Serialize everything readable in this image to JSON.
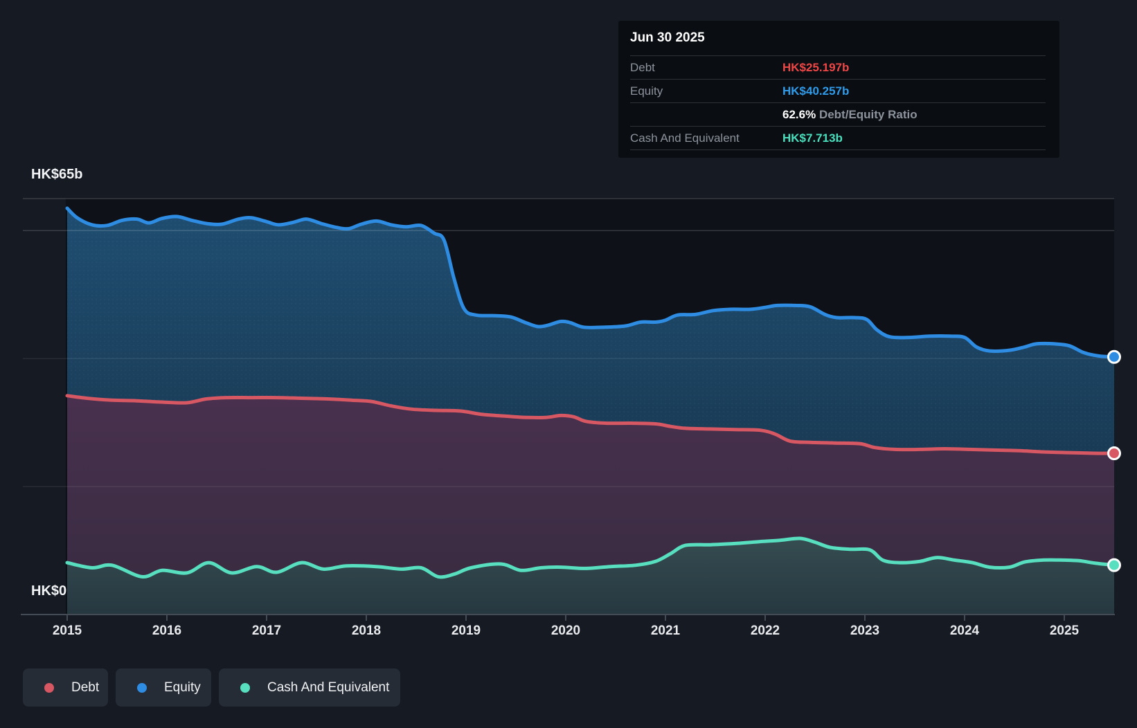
{
  "tooltip": {
    "date": "Jun 30 2025",
    "debt_label": "Debt",
    "debt_value": "HK$25.197b",
    "equity_label": "Equity",
    "equity_value": "HK$40.257b",
    "ratio_percent": "62.6%",
    "ratio_label": "Debt/Equity Ratio",
    "cash_label": "Cash And Equivalent",
    "cash_value": "HK$7.713b"
  },
  "legend": {
    "items": [
      {
        "label": "Debt",
        "series": "Debt"
      },
      {
        "label": "Equity",
        "series": "Equity"
      },
      {
        "label": "Cash And Equivalent",
        "series": "Cash And Equivalent"
      }
    ]
  },
  "chart_data": {
    "type": "area",
    "y_axis_top_label": "HK$65b",
    "y_axis_bottom_label": "HK$0",
    "ylim": [
      0,
      65
    ],
    "x_range": [
      2015,
      2025.5
    ],
    "x_tick_labels": [
      "2015",
      "2016",
      "2017",
      "2018",
      "2019",
      "2020",
      "2021",
      "2022",
      "2023",
      "2024",
      "2025"
    ],
    "y_gridline_values": [
      65,
      60,
      40,
      20
    ],
    "grid": true,
    "legend_position": "bottom-left",
    "series": [
      {
        "name": "Debt",
        "color": "#d75763",
        "end_value_label": "HK$25.197b",
        "values": [
          [
            2015.0,
            34.2
          ],
          [
            2015.2,
            33.8
          ],
          [
            2015.45,
            33.5
          ],
          [
            2015.7,
            33.4
          ],
          [
            2015.95,
            33.2
          ],
          [
            2016.2,
            33.1
          ],
          [
            2016.4,
            33.7
          ],
          [
            2016.6,
            33.9
          ],
          [
            2016.85,
            33.9
          ],
          [
            2017.1,
            33.9
          ],
          [
            2017.35,
            33.8
          ],
          [
            2017.6,
            33.7
          ],
          [
            2017.85,
            33.5
          ],
          [
            2018.05,
            33.3
          ],
          [
            2018.25,
            32.6
          ],
          [
            2018.45,
            32.1
          ],
          [
            2018.7,
            31.9
          ],
          [
            2018.95,
            31.8
          ],
          [
            2019.15,
            31.3
          ],
          [
            2019.4,
            31.0
          ],
          [
            2019.6,
            30.8
          ],
          [
            2019.8,
            30.8
          ],
          [
            2019.95,
            31.1
          ],
          [
            2020.08,
            30.9
          ],
          [
            2020.2,
            30.2
          ],
          [
            2020.4,
            29.9
          ],
          [
            2020.65,
            29.9
          ],
          [
            2020.9,
            29.8
          ],
          [
            2021.05,
            29.4
          ],
          [
            2021.2,
            29.1
          ],
          [
            2021.45,
            29.0
          ],
          [
            2021.7,
            28.9
          ],
          [
            2021.95,
            28.8
          ],
          [
            2022.1,
            28.2
          ],
          [
            2022.25,
            27.1
          ],
          [
            2022.45,
            26.9
          ],
          [
            2022.7,
            26.8
          ],
          [
            2022.95,
            26.7
          ],
          [
            2023.1,
            26.1
          ],
          [
            2023.3,
            25.8
          ],
          [
            2023.55,
            25.8
          ],
          [
            2023.8,
            25.9
          ],
          [
            2024.05,
            25.8
          ],
          [
            2024.3,
            25.7
          ],
          [
            2024.55,
            25.6
          ],
          [
            2024.8,
            25.4
          ],
          [
            2025.05,
            25.3
          ],
          [
            2025.3,
            25.2
          ],
          [
            2025.5,
            25.197
          ]
        ]
      },
      {
        "name": "Equity",
        "color": "#2e8de3",
        "end_value_label": "HK$40.257b",
        "values": [
          [
            2015.0,
            63.5
          ],
          [
            2015.1,
            62.0
          ],
          [
            2015.25,
            60.9
          ],
          [
            2015.4,
            60.8
          ],
          [
            2015.55,
            61.6
          ],
          [
            2015.7,
            61.8
          ],
          [
            2015.82,
            61.2
          ],
          [
            2015.95,
            61.9
          ],
          [
            2016.1,
            62.2
          ],
          [
            2016.25,
            61.6
          ],
          [
            2016.4,
            61.1
          ],
          [
            2016.55,
            61.0
          ],
          [
            2016.72,
            61.8
          ],
          [
            2016.85,
            62.0
          ],
          [
            2017.0,
            61.4
          ],
          [
            2017.12,
            60.9
          ],
          [
            2017.27,
            61.3
          ],
          [
            2017.4,
            61.8
          ],
          [
            2017.55,
            61.1
          ],
          [
            2017.7,
            60.5
          ],
          [
            2017.82,
            60.3
          ],
          [
            2017.95,
            61.0
          ],
          [
            2018.1,
            61.5
          ],
          [
            2018.25,
            60.9
          ],
          [
            2018.4,
            60.6
          ],
          [
            2018.55,
            60.8
          ],
          [
            2018.68,
            59.6
          ],
          [
            2018.78,
            58.5
          ],
          [
            2018.88,
            52.5
          ],
          [
            2018.98,
            47.8
          ],
          [
            2019.1,
            46.8
          ],
          [
            2019.3,
            46.7
          ],
          [
            2019.45,
            46.5
          ],
          [
            2019.6,
            45.6
          ],
          [
            2019.72,
            45.0
          ],
          [
            2019.82,
            45.2
          ],
          [
            2019.95,
            45.8
          ],
          [
            2020.05,
            45.6
          ],
          [
            2020.18,
            44.9
          ],
          [
            2020.4,
            44.9
          ],
          [
            2020.6,
            45.1
          ],
          [
            2020.75,
            45.7
          ],
          [
            2020.9,
            45.7
          ],
          [
            2021.0,
            46.0
          ],
          [
            2021.12,
            46.8
          ],
          [
            2021.3,
            46.9
          ],
          [
            2021.48,
            47.5
          ],
          [
            2021.65,
            47.7
          ],
          [
            2021.85,
            47.7
          ],
          [
            2022.0,
            48.0
          ],
          [
            2022.12,
            48.3
          ],
          [
            2022.3,
            48.3
          ],
          [
            2022.45,
            48.1
          ],
          [
            2022.6,
            46.9
          ],
          [
            2022.72,
            46.4
          ],
          [
            2022.9,
            46.4
          ],
          [
            2023.02,
            46.1
          ],
          [
            2023.12,
            44.5
          ],
          [
            2023.25,
            43.4
          ],
          [
            2023.45,
            43.3
          ],
          [
            2023.65,
            43.5
          ],
          [
            2023.85,
            43.5
          ],
          [
            2024.0,
            43.3
          ],
          [
            2024.12,
            41.8
          ],
          [
            2024.25,
            41.2
          ],
          [
            2024.45,
            41.3
          ],
          [
            2024.6,
            41.8
          ],
          [
            2024.72,
            42.3
          ],
          [
            2024.9,
            42.3
          ],
          [
            2025.05,
            42.0
          ],
          [
            2025.2,
            40.9
          ],
          [
            2025.35,
            40.4
          ],
          [
            2025.5,
            40.257
          ]
        ]
      },
      {
        "name": "Cash And Equivalent",
        "color": "#57dfc0",
        "end_value_label": "HK$7.713b",
        "values": [
          [
            2015.0,
            8.1
          ],
          [
            2015.25,
            7.3
          ],
          [
            2015.45,
            7.7
          ],
          [
            2015.75,
            5.9
          ],
          [
            2015.95,
            6.9
          ],
          [
            2016.2,
            6.5
          ],
          [
            2016.42,
            8.1
          ],
          [
            2016.65,
            6.5
          ],
          [
            2016.9,
            7.5
          ],
          [
            2017.1,
            6.6
          ],
          [
            2017.35,
            8.1
          ],
          [
            2017.57,
            7.1
          ],
          [
            2017.8,
            7.6
          ],
          [
            2018.1,
            7.5
          ],
          [
            2018.35,
            7.1
          ],
          [
            2018.55,
            7.3
          ],
          [
            2018.72,
            5.9
          ],
          [
            2018.88,
            6.3
          ],
          [
            2019.05,
            7.3
          ],
          [
            2019.35,
            7.9
          ],
          [
            2019.55,
            6.9
          ],
          [
            2019.75,
            7.3
          ],
          [
            2019.95,
            7.4
          ],
          [
            2020.2,
            7.2
          ],
          [
            2020.45,
            7.5
          ],
          [
            2020.7,
            7.7
          ],
          [
            2020.9,
            8.3
          ],
          [
            2021.05,
            9.5
          ],
          [
            2021.2,
            10.8
          ],
          [
            2021.45,
            10.9
          ],
          [
            2021.7,
            11.1
          ],
          [
            2021.95,
            11.4
          ],
          [
            2022.15,
            11.6
          ],
          [
            2022.35,
            11.9
          ],
          [
            2022.5,
            11.3
          ],
          [
            2022.65,
            10.5
          ],
          [
            2022.85,
            10.2
          ],
          [
            2023.05,
            10.1
          ],
          [
            2023.18,
            8.5
          ],
          [
            2023.35,
            8.1
          ],
          [
            2023.55,
            8.3
          ],
          [
            2023.72,
            8.9
          ],
          [
            2023.9,
            8.5
          ],
          [
            2024.08,
            8.1
          ],
          [
            2024.25,
            7.4
          ],
          [
            2024.45,
            7.4
          ],
          [
            2024.6,
            8.2
          ],
          [
            2024.78,
            8.5
          ],
          [
            2025.0,
            8.5
          ],
          [
            2025.15,
            8.4
          ],
          [
            2025.32,
            8.0
          ],
          [
            2025.5,
            7.713
          ]
        ]
      }
    ]
  }
}
